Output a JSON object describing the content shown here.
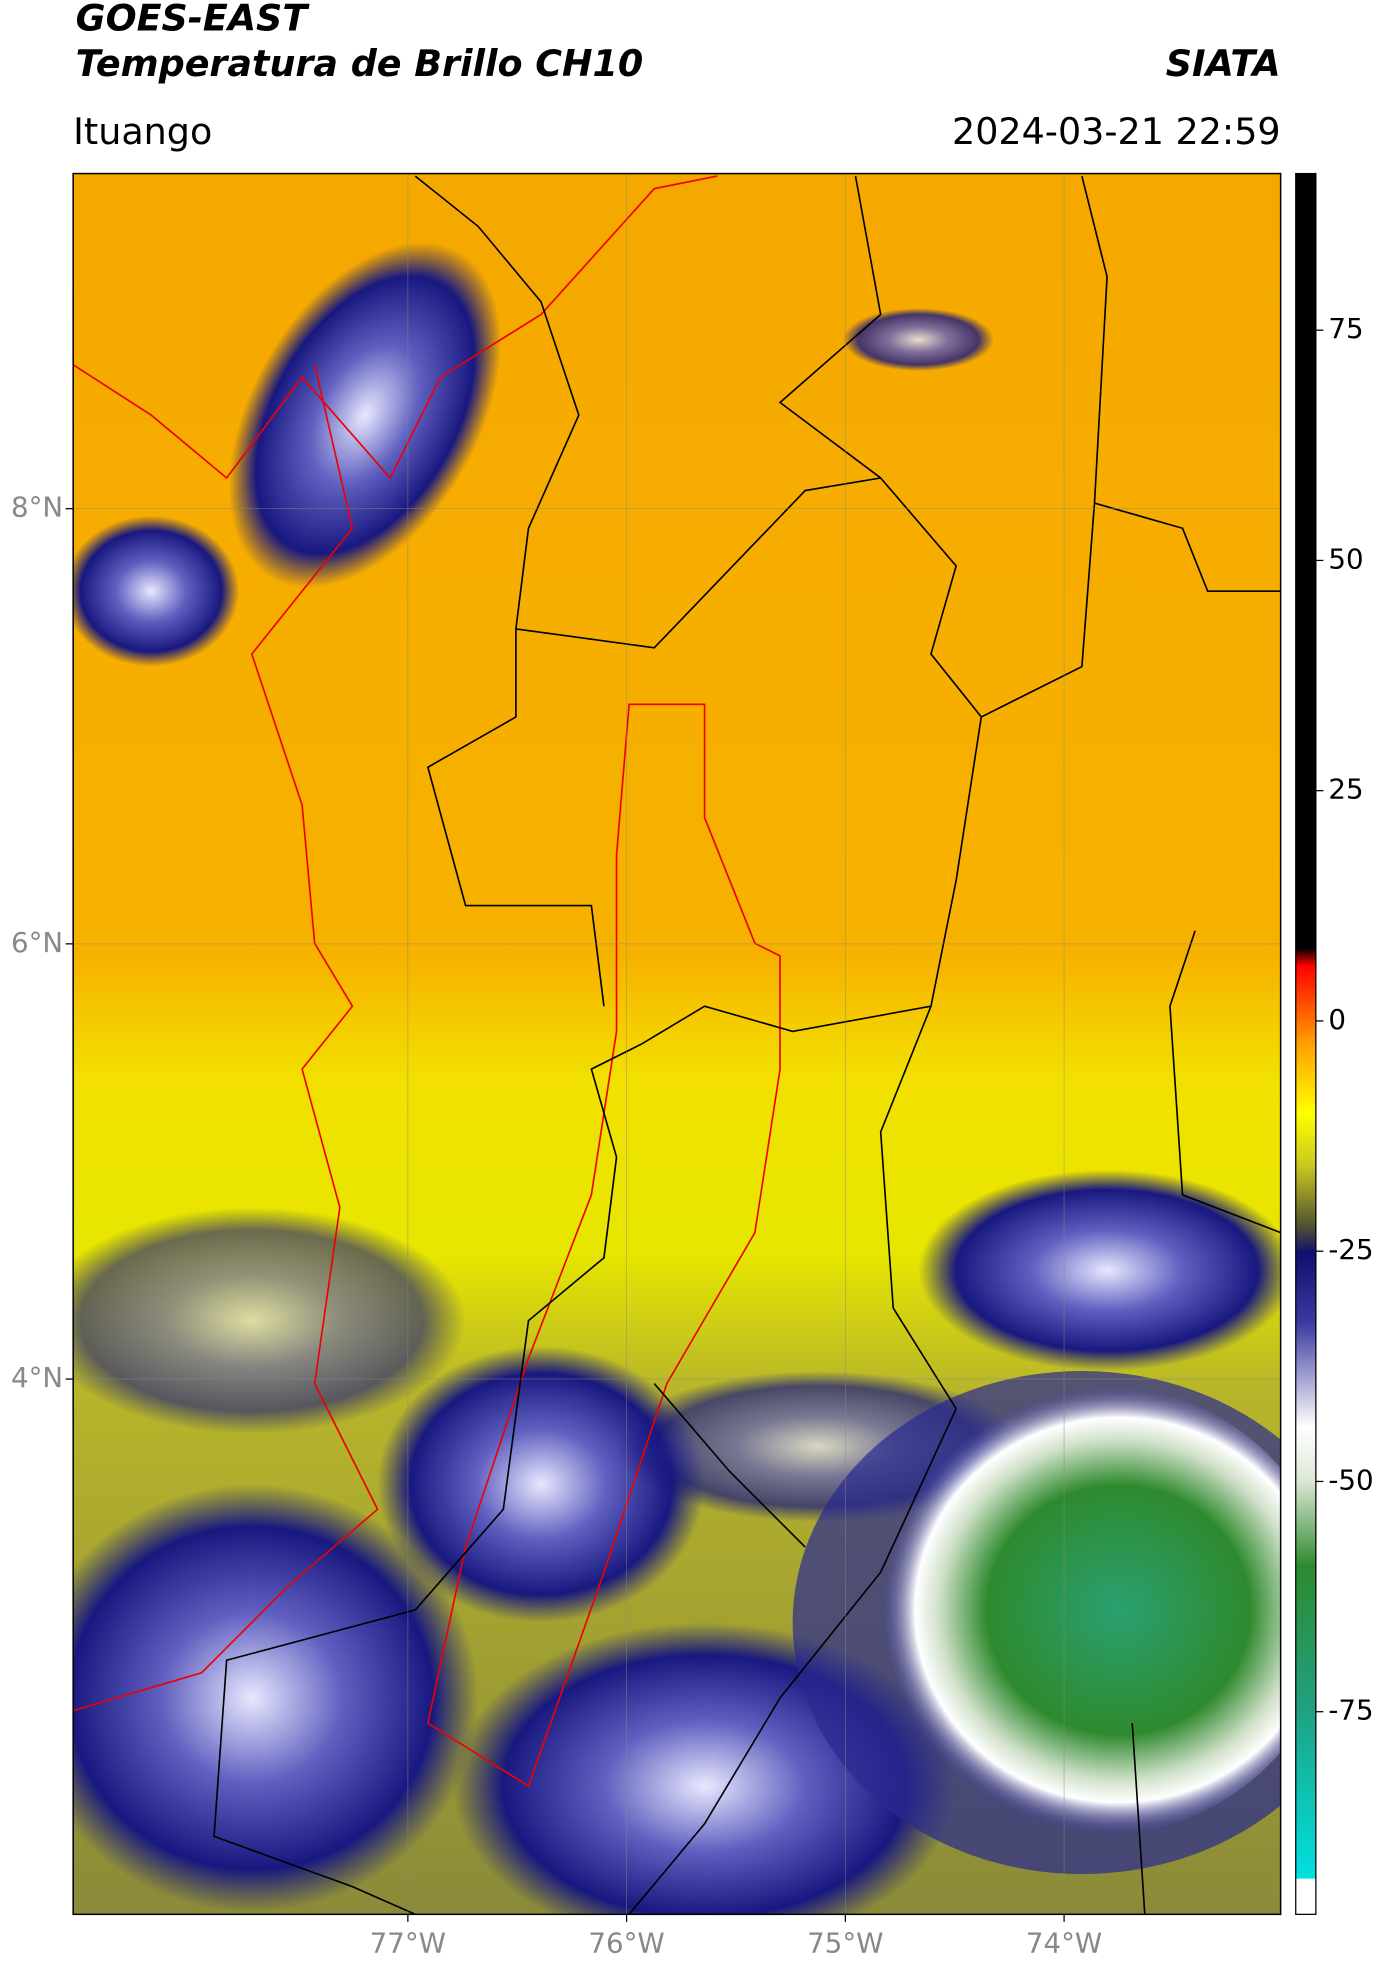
{
  "header": {
    "title": "GOES-EAST",
    "subtitle": "Temperatura de Brillo CH10",
    "brand": "SIATA",
    "region": "Ituango",
    "datetime": "2024-03-21 22:59"
  },
  "map": {
    "lat_range": [
      1.54,
      9.54
    ],
    "lon_range": [
      -78.53,
      -73.01
    ],
    "lat_ticks": [
      {
        "value": 8,
        "label": "8°N"
      },
      {
        "value": 6,
        "label": "6°N"
      },
      {
        "value": 4,
        "label": "4°N"
      }
    ],
    "lon_ticks": [
      {
        "value": -77,
        "label": "77°W"
      },
      {
        "value": -76,
        "label": "76°W"
      },
      {
        "value": -75,
        "label": "75°W"
      },
      {
        "value": -74,
        "label": "74°W"
      }
    ]
  },
  "colorbar": {
    "range": [
      -97,
      92
    ],
    "ticks": [
      75,
      50,
      25,
      0,
      -25,
      -50,
      -75
    ]
  }
}
